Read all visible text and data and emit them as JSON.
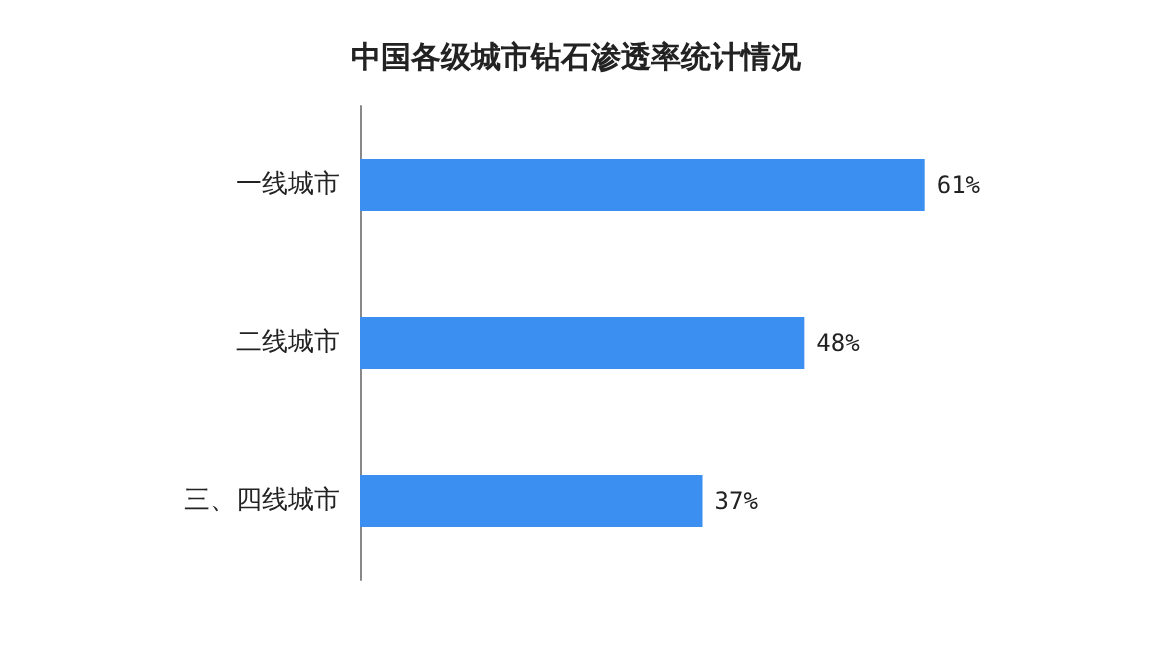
{
  "chart_data": {
    "type": "bar",
    "orientation": "horizontal",
    "title": "中国各级城市钻石渗透率统计情况",
    "categories": [
      "一线城市",
      "二线城市",
      "三、四线城市"
    ],
    "values": [
      61,
      48,
      37
    ],
    "value_labels": [
      "61%",
      "48%",
      "37%"
    ],
    "color": "#3b8ff0"
  }
}
